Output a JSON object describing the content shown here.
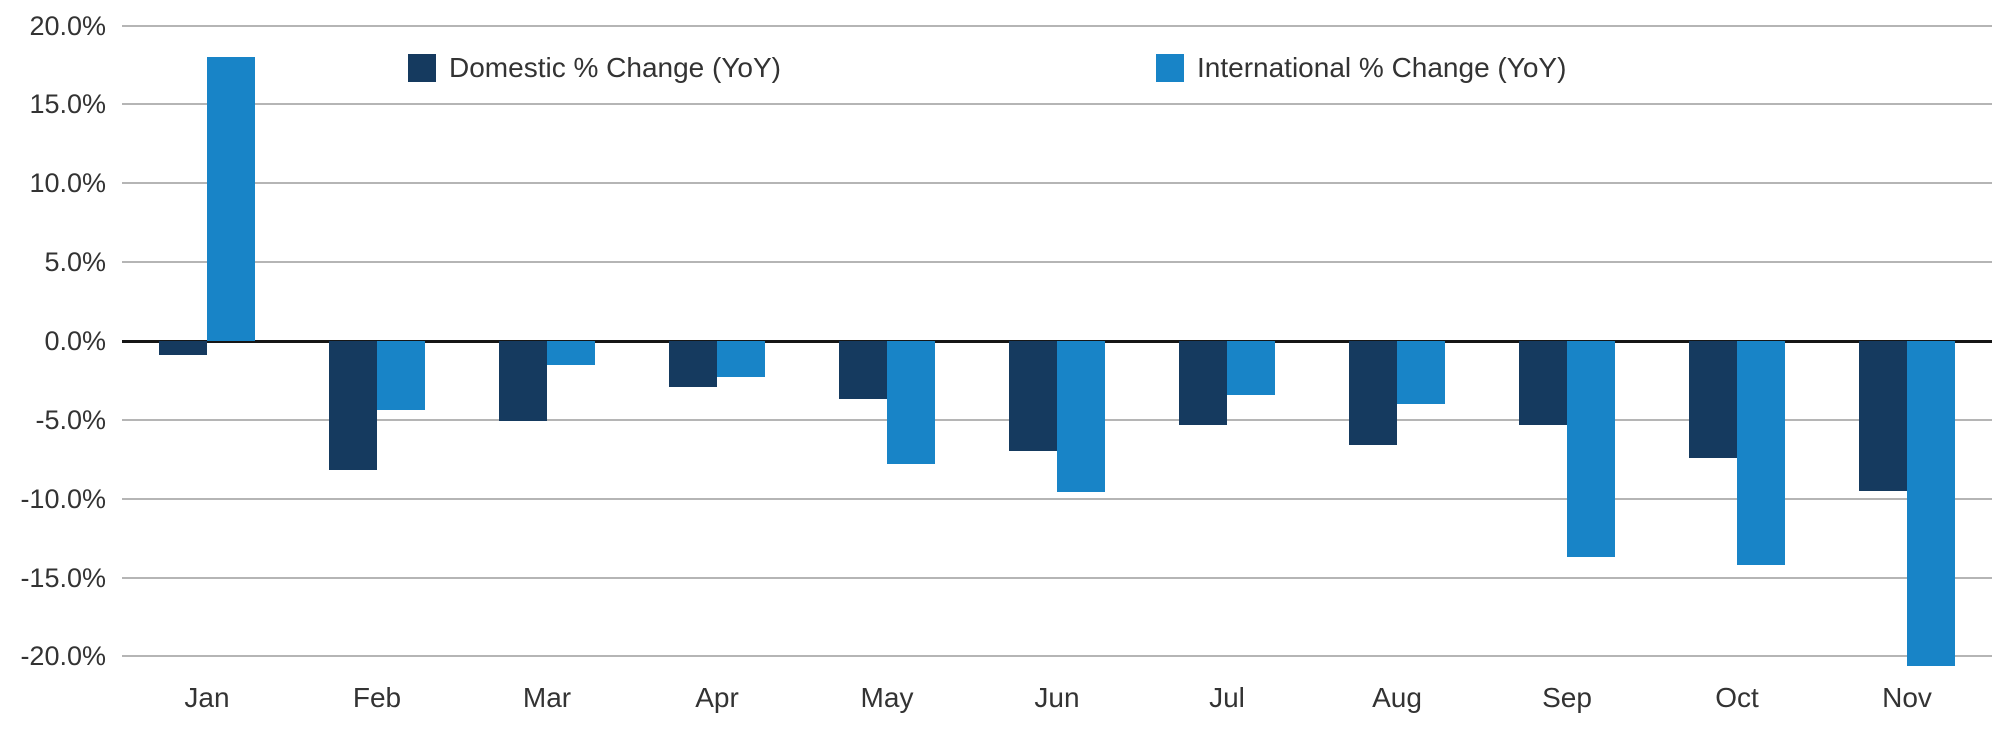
{
  "chart_data": {
    "type": "bar",
    "title": "",
    "xlabel": "",
    "ylabel": "",
    "categories": [
      "Jan",
      "Feb",
      "Mar",
      "Apr",
      "May",
      "Jun",
      "Jul",
      "Aug",
      "Sep",
      "Oct",
      "Nov"
    ],
    "series": [
      {
        "name": "Domestic % Change (YoY)",
        "color": "#153A5F",
        "values": [
          -0.9,
          -8.2,
          -5.1,
          -2.9,
          -3.7,
          -7.0,
          -5.3,
          -6.6,
          -5.3,
          -7.4,
          -9.5
        ]
      },
      {
        "name": "International % Change (YoY)",
        "color": "#1884C7",
        "values": [
          18.0,
          -4.4,
          -1.5,
          -2.3,
          -7.8,
          -9.6,
          -3.4,
          -4.0,
          -13.7,
          -14.2,
          -20.6
        ]
      }
    ],
    "y_axis": {
      "tick_values": [
        20,
        15,
        10,
        5,
        0,
        -5,
        -10,
        -15,
        -20
      ],
      "tick_labels": [
        "20.0%",
        "15.0%",
        "10.0%",
        "5.0%",
        "0.0%",
        "-5.0%",
        "-10.0%",
        "-15.0%",
        "-20.0%"
      ],
      "ylim": [
        -21.5,
        20
      ]
    },
    "grid": "horizontal",
    "legend_position": "top-inside",
    "colors": {
      "gridline": "#b5b5b5",
      "zero_line": "#161616",
      "text": "#333333",
      "background": "#ffffff"
    }
  }
}
